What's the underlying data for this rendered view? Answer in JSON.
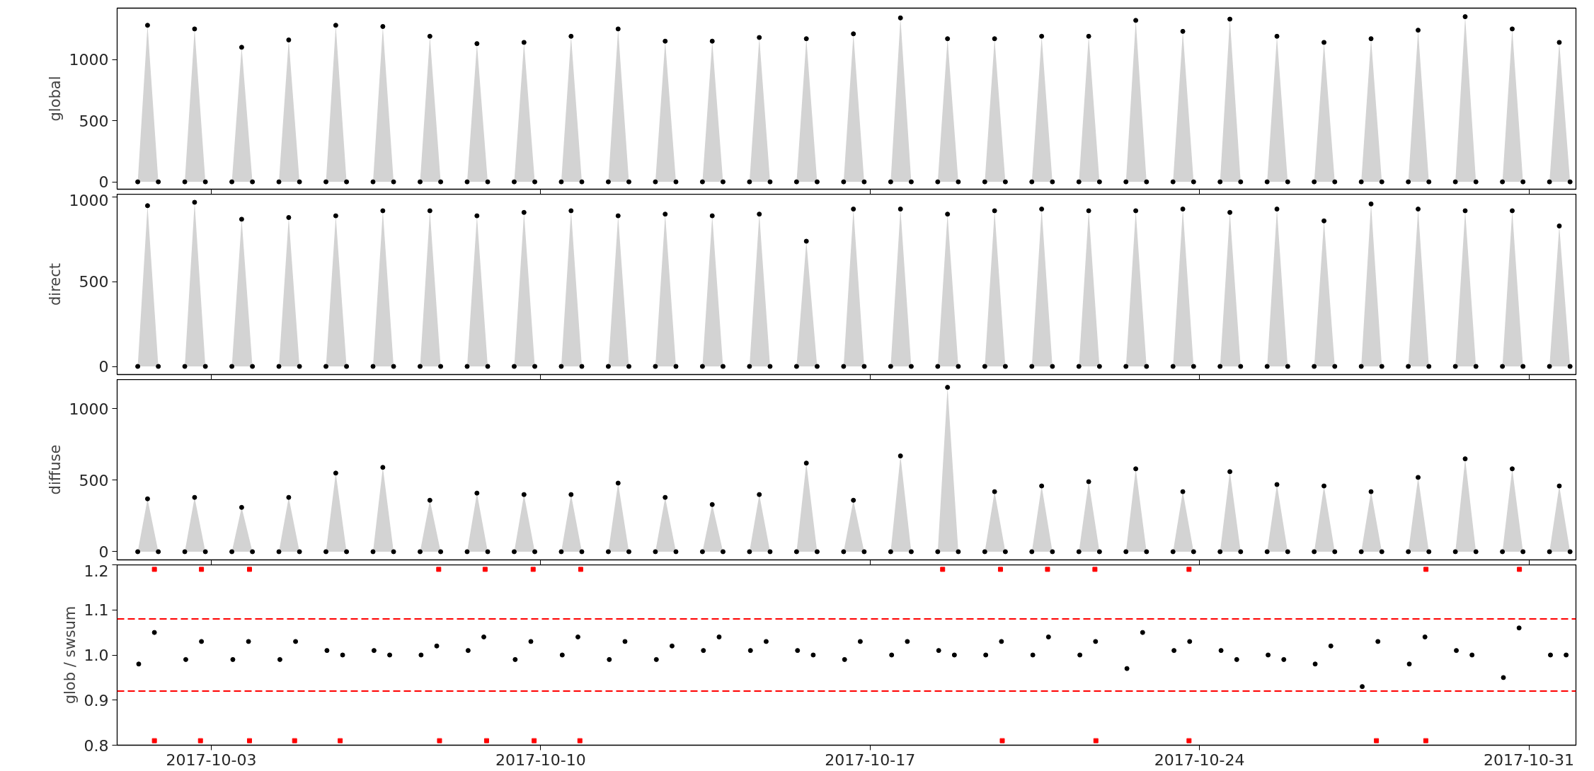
{
  "chart_data": [
    {
      "type": "area",
      "ylabel": "global",
      "ylim": [
        -60,
        1420
      ],
      "yticks": [
        0,
        500,
        1000
      ],
      "xlim": [
        "2017-10-01T00:00",
        "2017-11-01T00:00"
      ],
      "xticks": [
        "2017-10-03",
        "2017-10-10",
        "2017-10-17",
        "2017-10-24",
        "2017-10-31"
      ],
      "tick_labels": "y",
      "x": [
        "2017-10-01T10:30",
        "2017-10-01T15:30",
        "2017-10-01T21:00",
        "2017-10-02T10:30",
        "2017-10-02T15:30",
        "2017-10-02T21:00",
        "2017-10-03T10:30",
        "2017-10-03T15:30",
        "2017-10-03T21:00",
        "2017-10-04T10:30",
        "2017-10-04T15:30",
        "2017-10-04T21:00",
        "2017-10-05T10:30",
        "2017-10-05T15:30",
        "2017-10-05T21:00",
        "2017-10-06T10:30",
        "2017-10-06T15:30",
        "2017-10-06T21:00",
        "2017-10-07T10:30",
        "2017-10-07T15:30",
        "2017-10-07T21:00",
        "2017-10-08T10:30",
        "2017-10-08T15:30",
        "2017-10-08T21:00",
        "2017-10-09T10:30",
        "2017-10-09T15:30",
        "2017-10-09T21:00",
        "2017-10-10T10:30",
        "2017-10-10T15:30",
        "2017-10-10T21:00",
        "2017-10-11T10:30",
        "2017-10-11T15:30",
        "2017-10-11T21:00",
        "2017-10-12T10:30",
        "2017-10-12T15:30",
        "2017-10-12T21:00",
        "2017-10-13T10:30",
        "2017-10-13T15:30",
        "2017-10-13T21:00",
        "2017-10-14T10:30",
        "2017-10-14T15:30",
        "2017-10-14T21:00",
        "2017-10-15T10:30",
        "2017-10-15T15:30",
        "2017-10-15T21:00",
        "2017-10-16T10:30",
        "2017-10-16T15:30",
        "2017-10-16T21:00",
        "2017-10-17T10:30",
        "2017-10-17T15:30",
        "2017-10-17T21:00",
        "2017-10-18T10:30",
        "2017-10-18T15:30",
        "2017-10-18T21:00",
        "2017-10-19T10:30",
        "2017-10-19T15:30",
        "2017-10-19T21:00",
        "2017-10-20T10:30",
        "2017-10-20T15:30",
        "2017-10-20T21:00",
        "2017-10-21T10:30",
        "2017-10-21T15:30",
        "2017-10-21T21:00",
        "2017-10-22T10:30",
        "2017-10-22T15:30",
        "2017-10-22T21:00",
        "2017-10-23T10:30",
        "2017-10-23T15:30",
        "2017-10-23T21:00",
        "2017-10-24T10:30",
        "2017-10-24T15:30",
        "2017-10-24T21:00",
        "2017-10-25T10:30",
        "2017-10-25T15:30",
        "2017-10-25T21:00",
        "2017-10-26T10:30",
        "2017-10-26T15:30",
        "2017-10-26T21:00",
        "2017-10-27T10:30",
        "2017-10-27T15:30",
        "2017-10-27T21:00",
        "2017-10-28T10:30",
        "2017-10-28T15:30",
        "2017-10-28T21:00",
        "2017-10-29T10:30",
        "2017-10-29T15:30",
        "2017-10-29T21:00",
        "2017-10-30T10:30",
        "2017-10-30T15:30",
        "2017-10-30T21:00",
        "2017-10-31T10:30",
        "2017-10-31T15:30",
        "2017-10-31T21:00"
      ],
      "series": [
        {
          "type": "area",
          "color": "#d3d3d3",
          "values": [
            0,
            1280,
            0,
            0,
            1250,
            0,
            0,
            1100,
            0,
            0,
            1160,
            0,
            0,
            1280,
            0,
            0,
            1270,
            0,
            0,
            1190,
            0,
            0,
            1130,
            0,
            0,
            1140,
            0,
            0,
            1190,
            0,
            0,
            1250,
            0,
            0,
            1150,
            0,
            0,
            1150,
            0,
            0,
            1180,
            0,
            0,
            1170,
            0,
            0,
            1210,
            0,
            0,
            1340,
            0,
            0,
            1170,
            0,
            0,
            1170,
            0,
            0,
            1190,
            0,
            0,
            1190,
            0,
            0,
            1320,
            0,
            0,
            1230,
            0,
            0,
            1330,
            0,
            0,
            1190,
            0,
            0,
            1140,
            0,
            0,
            1170,
            0,
            0,
            1240,
            0,
            0,
            1350,
            0,
            0,
            1250,
            0,
            0,
            1140,
            0
          ]
        },
        {
          "type": "scatter",
          "marker": "circle",
          "color": "#000000",
          "values": [
            0,
            1280,
            0,
            0,
            1250,
            0,
            0,
            1100,
            0,
            0,
            1160,
            0,
            0,
            1280,
            0,
            0,
            1270,
            0,
            0,
            1190,
            0,
            0,
            1130,
            0,
            0,
            1140,
            0,
            0,
            1190,
            0,
            0,
            1250,
            0,
            0,
            1150,
            0,
            0,
            1150,
            0,
            0,
            1180,
            0,
            0,
            1170,
            0,
            0,
            1210,
            0,
            0,
            1340,
            0,
            0,
            1170,
            0,
            0,
            1170,
            0,
            0,
            1190,
            0,
            0,
            1190,
            0,
            0,
            1320,
            0,
            0,
            1230,
            0,
            0,
            1330,
            0,
            0,
            1190,
            0,
            0,
            1140,
            0,
            0,
            1170,
            0,
            0,
            1240,
            0,
            0,
            1350,
            0,
            0,
            1250,
            0,
            0,
            1140,
            0
          ]
        }
      ]
    },
    {
      "type": "area",
      "ylabel": "direct",
      "ylim": [
        -48,
        1018
      ],
      "yticks": [
        0,
        500,
        1000
      ],
      "xlim": [
        "2017-10-01T00:00",
        "2017-11-01T00:00"
      ],
      "xticks": [
        "2017-10-03",
        "2017-10-10",
        "2017-10-17",
        "2017-10-24",
        "2017-10-31"
      ],
      "tick_labels": "y",
      "x": [
        "2017-10-01T10:30",
        "2017-10-01T15:30",
        "2017-10-01T21:00",
        "2017-10-02T10:30",
        "2017-10-02T15:30",
        "2017-10-02T21:00",
        "2017-10-03T10:30",
        "2017-10-03T15:30",
        "2017-10-03T21:00",
        "2017-10-04T10:30",
        "2017-10-04T15:30",
        "2017-10-04T21:00",
        "2017-10-05T10:30",
        "2017-10-05T15:30",
        "2017-10-05T21:00",
        "2017-10-06T10:30",
        "2017-10-06T15:30",
        "2017-10-06T21:00",
        "2017-10-07T10:30",
        "2017-10-07T15:30",
        "2017-10-07T21:00",
        "2017-10-08T10:30",
        "2017-10-08T15:30",
        "2017-10-08T21:00",
        "2017-10-09T10:30",
        "2017-10-09T15:30",
        "2017-10-09T21:00",
        "2017-10-10T10:30",
        "2017-10-10T15:30",
        "2017-10-10T21:00",
        "2017-10-11T10:30",
        "2017-10-11T15:30",
        "2017-10-11T21:00",
        "2017-10-12T10:30",
        "2017-10-12T15:30",
        "2017-10-12T21:00",
        "2017-10-13T10:30",
        "2017-10-13T15:30",
        "2017-10-13T21:00",
        "2017-10-14T10:30",
        "2017-10-14T15:30",
        "2017-10-14T21:00",
        "2017-10-15T10:30",
        "2017-10-15T15:30",
        "2017-10-15T21:00",
        "2017-10-16T10:30",
        "2017-10-16T15:30",
        "2017-10-16T21:00",
        "2017-10-17T10:30",
        "2017-10-17T15:30",
        "2017-10-17T21:00",
        "2017-10-18T10:30",
        "2017-10-18T15:30",
        "2017-10-18T21:00",
        "2017-10-19T10:30",
        "2017-10-19T15:30",
        "2017-10-19T21:00",
        "2017-10-20T10:30",
        "2017-10-20T15:30",
        "2017-10-20T21:00",
        "2017-10-21T10:30",
        "2017-10-21T15:30",
        "2017-10-21T21:00",
        "2017-10-22T10:30",
        "2017-10-22T15:30",
        "2017-10-22T21:00",
        "2017-10-23T10:30",
        "2017-10-23T15:30",
        "2017-10-23T21:00",
        "2017-10-24T10:30",
        "2017-10-24T15:30",
        "2017-10-24T21:00",
        "2017-10-25T10:30",
        "2017-10-25T15:30",
        "2017-10-25T21:00",
        "2017-10-26T10:30",
        "2017-10-26T15:30",
        "2017-10-26T21:00",
        "2017-10-27T10:30",
        "2017-10-27T15:30",
        "2017-10-27T21:00",
        "2017-10-28T10:30",
        "2017-10-28T15:30",
        "2017-10-28T21:00",
        "2017-10-29T10:30",
        "2017-10-29T15:30",
        "2017-10-29T21:00",
        "2017-10-30T10:30",
        "2017-10-30T15:30",
        "2017-10-30T21:00",
        "2017-10-31T10:30",
        "2017-10-31T15:30",
        "2017-10-31T21:00"
      ],
      "series": [
        {
          "type": "area",
          "color": "#d3d3d3",
          "values": [
            0,
            950,
            0,
            0,
            970,
            0,
            0,
            870,
            0,
            0,
            880,
            0,
            0,
            890,
            0,
            0,
            920,
            0,
            0,
            920,
            0,
            0,
            890,
            0,
            0,
            910,
            0,
            0,
            920,
            0,
            0,
            890,
            0,
            0,
            900,
            0,
            0,
            890,
            0,
            0,
            900,
            0,
            0,
            740,
            0,
            0,
            930,
            0,
            0,
            930,
            0,
            0,
            900,
            0,
            0,
            920,
            0,
            0,
            930,
            0,
            0,
            920,
            0,
            0,
            920,
            0,
            0,
            930,
            0,
            0,
            910,
            0,
            0,
            930,
            0,
            0,
            860,
            0,
            0,
            960,
            0,
            0,
            930,
            0,
            0,
            920,
            0,
            0,
            920,
            0,
            0,
            830,
            0
          ]
        },
        {
          "type": "scatter",
          "marker": "circle",
          "color": "#000000",
          "values": [
            0,
            950,
            0,
            0,
            970,
            0,
            0,
            870,
            0,
            0,
            880,
            0,
            0,
            890,
            0,
            0,
            920,
            0,
            0,
            920,
            0,
            0,
            890,
            0,
            0,
            910,
            0,
            0,
            920,
            0,
            0,
            890,
            0,
            0,
            900,
            0,
            0,
            890,
            0,
            0,
            900,
            0,
            0,
            740,
            0,
            0,
            930,
            0,
            0,
            930,
            0,
            0,
            900,
            0,
            0,
            920,
            0,
            0,
            930,
            0,
            0,
            920,
            0,
            0,
            920,
            0,
            0,
            930,
            0,
            0,
            910,
            0,
            0,
            930,
            0,
            0,
            860,
            0,
            0,
            960,
            0,
            0,
            930,
            0,
            0,
            920,
            0,
            0,
            920,
            0,
            0,
            830,
            0
          ]
        }
      ]
    },
    {
      "type": "area",
      "ylabel": "diffuse",
      "ylim": [
        -57,
        1205
      ],
      "yticks": [
        0,
        500,
        1000
      ],
      "xlim": [
        "2017-10-01T00:00",
        "2017-11-01T00:00"
      ],
      "xticks": [
        "2017-10-03",
        "2017-10-10",
        "2017-10-17",
        "2017-10-24",
        "2017-10-31"
      ],
      "tick_labels": "y",
      "x": [
        "2017-10-01T10:30",
        "2017-10-01T15:30",
        "2017-10-01T21:00",
        "2017-10-02T10:30",
        "2017-10-02T15:30",
        "2017-10-02T21:00",
        "2017-10-03T10:30",
        "2017-10-03T15:30",
        "2017-10-03T21:00",
        "2017-10-04T10:30",
        "2017-10-04T15:30",
        "2017-10-04T21:00",
        "2017-10-05T10:30",
        "2017-10-05T15:30",
        "2017-10-05T21:00",
        "2017-10-06T10:30",
        "2017-10-06T15:30",
        "2017-10-06T21:00",
        "2017-10-07T10:30",
        "2017-10-07T15:30",
        "2017-10-07T21:00",
        "2017-10-08T10:30",
        "2017-10-08T15:30",
        "2017-10-08T21:00",
        "2017-10-09T10:30",
        "2017-10-09T15:30",
        "2017-10-09T21:00",
        "2017-10-10T10:30",
        "2017-10-10T15:30",
        "2017-10-10T21:00",
        "2017-10-11T10:30",
        "2017-10-11T15:30",
        "2017-10-11T21:00",
        "2017-10-12T10:30",
        "2017-10-12T15:30",
        "2017-10-12T21:00",
        "2017-10-13T10:30",
        "2017-10-13T15:30",
        "2017-10-13T21:00",
        "2017-10-14T10:30",
        "2017-10-14T15:30",
        "2017-10-14T21:00",
        "2017-10-15T10:30",
        "2017-10-15T15:30",
        "2017-10-15T21:00",
        "2017-10-16T10:30",
        "2017-10-16T15:30",
        "2017-10-16T21:00",
        "2017-10-17T10:30",
        "2017-10-17T15:30",
        "2017-10-17T21:00",
        "2017-10-18T10:30",
        "2017-10-18T15:30",
        "2017-10-18T21:00",
        "2017-10-19T10:30",
        "2017-10-19T15:30",
        "2017-10-19T21:00",
        "2017-10-20T10:30",
        "2017-10-20T15:30",
        "2017-10-20T21:00",
        "2017-10-21T10:30",
        "2017-10-21T15:30",
        "2017-10-21T21:00",
        "2017-10-22T10:30",
        "2017-10-22T15:30",
        "2017-10-22T21:00",
        "2017-10-23T10:30",
        "2017-10-23T15:30",
        "2017-10-23T21:00",
        "2017-10-24T10:30",
        "2017-10-24T15:30",
        "2017-10-24T21:00",
        "2017-10-25T10:30",
        "2017-10-25T15:30",
        "2017-10-25T21:00",
        "2017-10-26T10:30",
        "2017-10-26T15:30",
        "2017-10-26T21:00",
        "2017-10-27T10:30",
        "2017-10-27T15:30",
        "2017-10-27T21:00",
        "2017-10-28T10:30",
        "2017-10-28T15:30",
        "2017-10-28T21:00",
        "2017-10-29T10:30",
        "2017-10-29T15:30",
        "2017-10-29T21:00",
        "2017-10-30T10:30",
        "2017-10-30T15:30",
        "2017-10-30T21:00",
        "2017-10-31T10:30",
        "2017-10-31T15:30",
        "2017-10-31T21:00"
      ],
      "series": [
        {
          "type": "area",
          "color": "#d3d3d3",
          "values": [
            0,
            370,
            0,
            0,
            380,
            0,
            0,
            310,
            0,
            0,
            380,
            0,
            0,
            550,
            0,
            0,
            590,
            0,
            0,
            360,
            0,
            0,
            410,
            0,
            0,
            400,
            0,
            0,
            400,
            0,
            0,
            480,
            0,
            0,
            380,
            0,
            0,
            330,
            0,
            0,
            400,
            0,
            0,
            620,
            0,
            0,
            360,
            0,
            0,
            670,
            0,
            0,
            1150,
            0,
            0,
            420,
            0,
            0,
            460,
            0,
            0,
            490,
            0,
            0,
            580,
            0,
            0,
            420,
            0,
            0,
            560,
            0,
            0,
            470,
            0,
            0,
            460,
            0,
            0,
            420,
            0,
            0,
            520,
            0,
            0,
            650,
            0,
            0,
            580,
            0,
            0,
            460,
            0
          ]
        },
        {
          "type": "scatter",
          "marker": "circle",
          "color": "#000000",
          "values": [
            0,
            370,
            0,
            0,
            380,
            0,
            0,
            310,
            0,
            0,
            380,
            0,
            0,
            550,
            0,
            0,
            590,
            0,
            0,
            360,
            0,
            0,
            410,
            0,
            0,
            400,
            0,
            0,
            400,
            0,
            0,
            480,
            0,
            0,
            380,
            0,
            0,
            330,
            0,
            0,
            400,
            0,
            0,
            620,
            0,
            0,
            360,
            0,
            0,
            670,
            0,
            0,
            1150,
            0,
            0,
            420,
            0,
            0,
            460,
            0,
            0,
            490,
            0,
            0,
            580,
            0,
            0,
            420,
            0,
            0,
            560,
            0,
            0,
            470,
            0,
            0,
            460,
            0,
            0,
            420,
            0,
            0,
            520,
            0,
            0,
            650,
            0,
            0,
            580,
            0,
            0,
            460,
            0
          ]
        }
      ]
    },
    {
      "type": "scatter",
      "ylabel": "glob / swsum",
      "ylim": [
        0.8,
        1.2
      ],
      "yticks": [
        {
          "value": 0.8,
          "label": "0.8"
        },
        {
          "value": 0.9,
          "label": "0.9"
        },
        {
          "value": 1.0,
          "label": "1.0"
        },
        {
          "value": 1.1,
          "label": "1.1"
        },
        {
          "value": 1.2,
          "label": "1.2"
        }
      ],
      "xlim": [
        "2017-10-01T00:00",
        "2017-11-01T00:00"
      ],
      "xticks": [
        "2017-10-03",
        "2017-10-10",
        "2017-10-17",
        "2017-10-24",
        "2017-10-31"
      ],
      "ref_lines": [
        {
          "axis": "y",
          "value": 1.08,
          "color": "#ff0000",
          "line_style": "dashed"
        },
        {
          "axis": "y",
          "value": 0.92,
          "color": "#ff0000",
          "line_style": "dashed"
        }
      ],
      "series": [
        {
          "color": "#000000",
          "marker": "circle",
          "x": [
            "2017-10-01T11:00",
            "2017-10-01T19:00",
            "2017-10-02T11:00",
            "2017-10-02T19:00",
            "2017-10-03T11:00",
            "2017-10-03T19:00",
            "2017-10-04T11:00",
            "2017-10-04T19:00",
            "2017-10-05T11:00",
            "2017-10-05T19:00",
            "2017-10-06T11:00",
            "2017-10-06T19:00",
            "2017-10-07T11:00",
            "2017-10-07T19:00",
            "2017-10-08T11:00",
            "2017-10-08T19:00",
            "2017-10-09T11:00",
            "2017-10-09T19:00",
            "2017-10-10T11:00",
            "2017-10-10T19:00",
            "2017-10-11T11:00",
            "2017-10-11T19:00",
            "2017-10-12T11:00",
            "2017-10-12T19:00",
            "2017-10-13T11:00",
            "2017-10-13T19:00",
            "2017-10-14T11:00",
            "2017-10-14T19:00",
            "2017-10-15T11:00",
            "2017-10-15T19:00",
            "2017-10-16T11:00",
            "2017-10-16T19:00",
            "2017-10-17T11:00",
            "2017-10-17T19:00",
            "2017-10-18T11:00",
            "2017-10-18T19:00",
            "2017-10-19T11:00",
            "2017-10-19T19:00",
            "2017-10-20T11:00",
            "2017-10-20T19:00",
            "2017-10-21T11:00",
            "2017-10-21T19:00",
            "2017-10-22T11:00",
            "2017-10-22T19:00",
            "2017-10-23T11:00",
            "2017-10-23T19:00",
            "2017-10-24T11:00",
            "2017-10-24T19:00",
            "2017-10-25T11:00",
            "2017-10-25T19:00",
            "2017-10-26T11:00",
            "2017-10-26T19:00",
            "2017-10-27T11:00",
            "2017-10-27T19:00",
            "2017-10-28T11:00",
            "2017-10-28T19:00",
            "2017-10-29T11:00",
            "2017-10-29T19:00",
            "2017-10-30T11:00",
            "2017-10-30T19:00",
            "2017-10-31T11:00",
            "2017-10-31T19:00"
          ],
          "values": [
            0.98,
            1.05,
            0.99,
            1.03,
            0.99,
            1.03,
            0.99,
            1.03,
            1.01,
            1.0,
            1.01,
            1.0,
            1.0,
            1.02,
            1.01,
            1.04,
            0.99,
            1.03,
            1.0,
            1.04,
            0.99,
            1.03,
            0.99,
            1.02,
            1.01,
            1.04,
            1.01,
            1.03,
            1.01,
            1.0,
            0.99,
            1.03,
            1.0,
            1.03,
            1.01,
            1.0,
            1.0,
            1.03,
            1.0,
            1.04,
            1.0,
            1.03,
            0.97,
            1.05,
            1.01,
            1.03,
            1.01,
            0.99,
            1.0,
            0.99,
            0.98,
            1.02,
            0.93,
            1.03,
            0.98,
            1.04,
            1.01,
            1.0,
            0.95,
            1.06,
            1.0,
            1.0
          ]
        },
        {
          "color": "#ff0000",
          "marker": "square",
          "x": [
            "2017-10-01T19:00",
            "2017-10-02T19:00",
            "2017-10-03T19:30",
            "2017-10-07T20:00",
            "2017-10-08T19:40",
            "2017-10-09T20:10",
            "2017-10-10T20:25",
            "2017-10-18T13:00",
            "2017-10-19T18:30",
            "2017-10-20T18:30",
            "2017-10-21T18:40",
            "2017-10-23T18:40",
            "2017-10-28T19:30",
            "2017-10-30T19:10",
            "2017-10-01T19:00",
            "2017-10-02T18:30",
            "2017-10-03T19:30",
            "2017-10-04T18:30",
            "2017-10-05T17:45",
            "2017-10-07T20:25",
            "2017-10-08T20:25",
            "2017-10-09T20:40",
            "2017-10-10T20:00",
            "2017-10-19T19:25",
            "2017-10-21T19:10",
            "2017-10-23T18:40",
            "2017-10-27T18:15",
            "2017-10-28T19:25"
          ],
          "values": [
            1.19,
            1.19,
            1.19,
            1.19,
            1.19,
            1.19,
            1.19,
            1.19,
            1.19,
            1.19,
            1.19,
            1.19,
            1.19,
            1.19,
            0.81,
            0.81,
            0.81,
            0.81,
            0.81,
            0.81,
            0.81,
            0.81,
            0.81,
            0.81,
            0.81,
            0.81,
            0.81,
            0.81
          ]
        }
      ]
    }
  ]
}
